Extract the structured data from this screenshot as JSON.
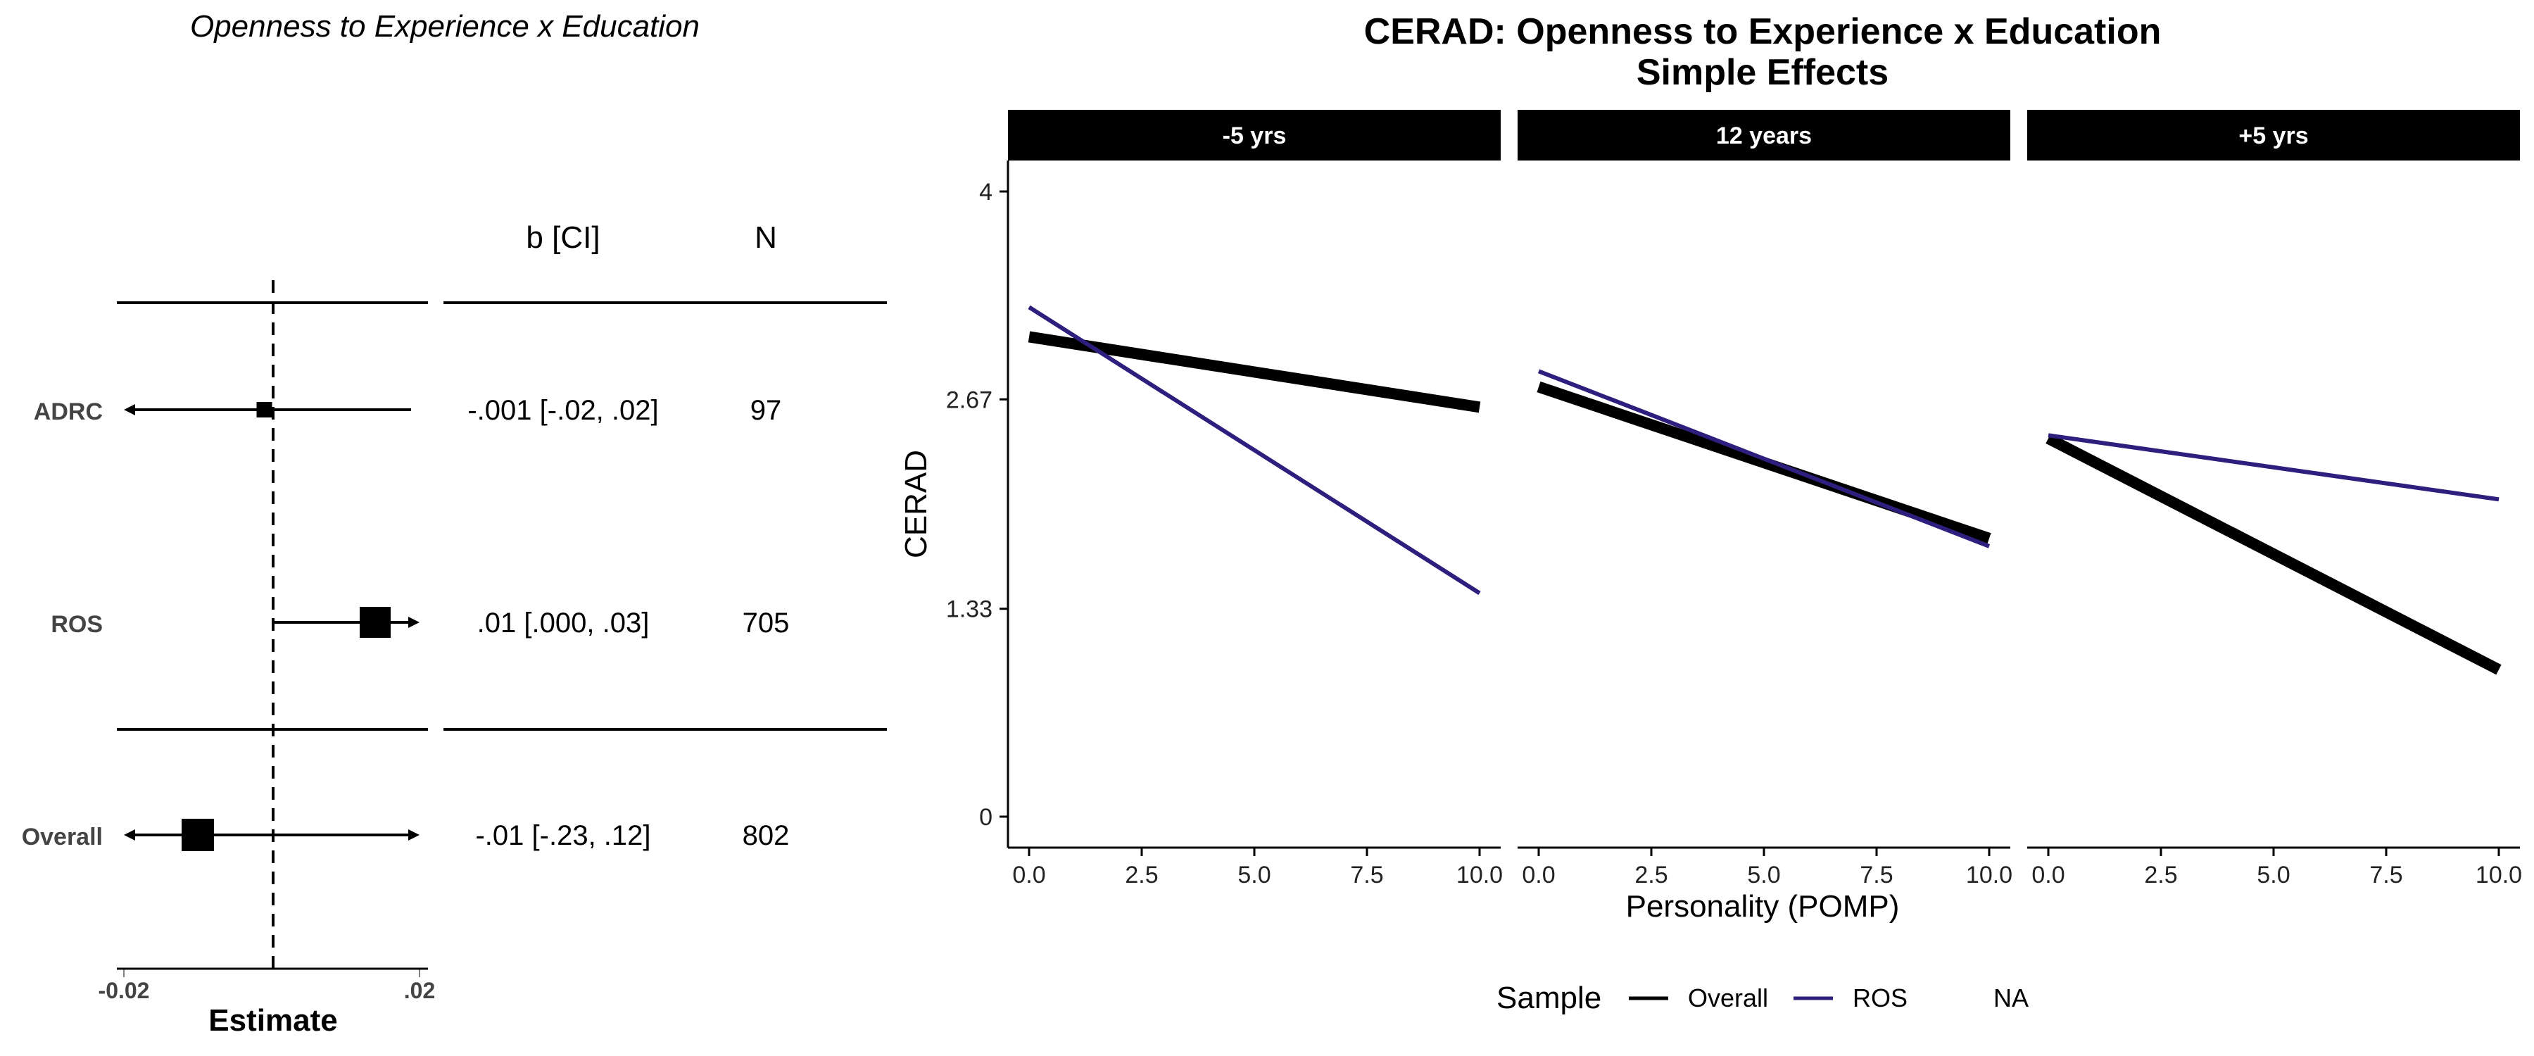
{
  "forest": {
    "title": "Openness to Experience x Education",
    "col_b": "b [CI]",
    "col_n": "N",
    "xlabel": "Estimate",
    "xlim": [
      -0.02,
      0.02
    ],
    "tick_labels": [
      "-0.02",
      ".02"
    ],
    "ticks": [
      -0.02,
      0.02
    ],
    "rows": [
      {
        "label": "ADRC",
        "estimate": -0.001,
        "ci": [
          -0.02,
          0.02
        ],
        "ci_text": "-.001 [-.02, .02]",
        "n": "97",
        "arrow_left": true,
        "arrow_right": false
      },
      {
        "label": "ROS",
        "estimate": 0.014,
        "ci": [
          0.0,
          0.03
        ],
        "ci_text": ".01 [.000, .03]",
        "n": "705",
        "arrow_left": false,
        "arrow_right": true
      },
      {
        "label": "Overall",
        "estimate": -0.01,
        "ci": [
          -0.23,
          0.12
        ],
        "ci_text": "-.01 [-.23, .12]",
        "n": "802",
        "arrow_left": true,
        "arrow_right": true
      }
    ]
  },
  "chart_data": {
    "type": "line",
    "title": "CERAD: Openness to Experience x Education",
    "subtitle": "Simple Effects",
    "xlabel": "Personality (POMP)",
    "ylabel": "CERAD",
    "xlim": [
      0,
      10
    ],
    "ylim": [
      0,
      4
    ],
    "x_ticks": [
      0,
      2.5,
      5,
      7.5,
      10
    ],
    "x_tick_labels": [
      "0.0",
      "2.5",
      "5.0",
      "7.5",
      "10.0"
    ],
    "y_ticks": [
      0,
      1.33,
      2.67,
      4
    ],
    "y_tick_labels": [
      "0",
      "1.33",
      "2.67",
      "4"
    ],
    "grid": false,
    "legend": {
      "title": "Sample",
      "position": "bottom",
      "entries": [
        "Overall",
        "ROS",
        "NA"
      ]
    },
    "colors": {
      "Overall": "#000000",
      "ROS": "#2e1f7e"
    },
    "panels": [
      {
        "label": "-5 yrs",
        "series": [
          {
            "name": "Overall",
            "x": [
              0,
              10
            ],
            "y": [
              3.07,
              2.62
            ]
          },
          {
            "name": "ROS",
            "x": [
              0,
              10
            ],
            "y": [
              3.26,
              1.43
            ]
          }
        ]
      },
      {
        "label": "12 years",
        "series": [
          {
            "name": "Overall",
            "x": [
              0,
              10
            ],
            "y": [
              2.75,
              1.78
            ]
          },
          {
            "name": "ROS",
            "x": [
              0,
              10
            ],
            "y": [
              2.85,
              1.73
            ]
          }
        ]
      },
      {
        "label": "+5 yrs",
        "series": [
          {
            "name": "Overall",
            "x": [
              0,
              10
            ],
            "y": [
              2.42,
              0.94
            ]
          },
          {
            "name": "ROS",
            "x": [
              0,
              10
            ],
            "y": [
              2.44,
              2.03
            ]
          }
        ]
      }
    ]
  }
}
